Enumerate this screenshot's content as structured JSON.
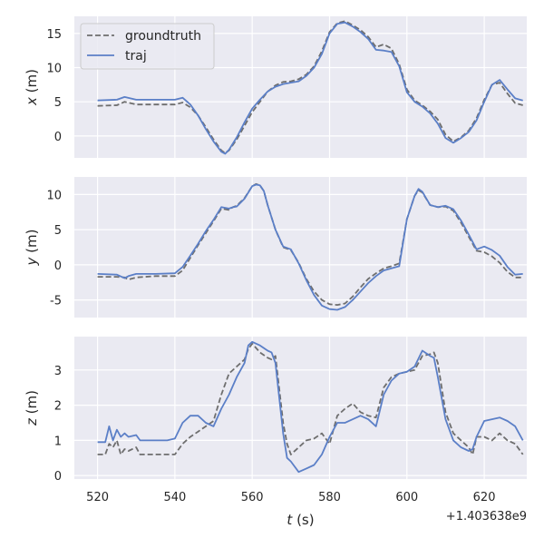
{
  "chart_data": [
    {
      "type": "line",
      "ylabel_var": "x",
      "ylabel_unit": " (m)",
      "xlim": [
        514,
        631
      ],
      "ylim": [
        -3.2,
        17.5
      ],
      "yticks": [
        0,
        5,
        10,
        15
      ],
      "xticks": [
        520,
        540,
        560,
        580,
        600,
        620
      ],
      "legend": {
        "position": "top-left",
        "entries": [
          "groundtruth",
          "traj"
        ]
      },
      "series": [
        {
          "name": "groundtruth",
          "style": "dashed",
          "color": "#6e6e6e",
          "x": [
            520,
            525,
            527,
            530,
            535,
            540,
            542,
            544,
            546,
            548,
            550,
            552,
            553,
            554,
            556,
            558,
            560,
            562,
            564,
            566,
            568,
            570,
            572,
            574,
            576,
            578,
            580,
            582,
            584,
            586,
            588,
            590,
            592,
            594,
            596,
            598,
            600,
            602,
            604,
            606,
            608,
            610,
            612,
            614,
            616,
            618,
            620,
            622,
            624,
            626,
            628,
            630
          ],
          "y": [
            4.4,
            4.5,
            5.0,
            4.6,
            4.6,
            4.6,
            4.9,
            4.2,
            3.0,
            1.3,
            -0.5,
            -2.1,
            -2.5,
            -2.1,
            -0.5,
            1.5,
            3.5,
            5.0,
            6.5,
            7.4,
            7.9,
            8.0,
            8.3,
            9.0,
            10.2,
            12.4,
            15.2,
            16.5,
            16.8,
            16.2,
            15.5,
            14.5,
            13.0,
            13.4,
            12.8,
            10.5,
            6.8,
            5.2,
            4.5,
            3.6,
            2.4,
            0.2,
            -0.8,
            -0.2,
            0.8,
            2.6,
            5.3,
            7.5,
            7.8,
            6.2,
            4.8,
            4.5
          ]
        },
        {
          "name": "traj",
          "style": "solid",
          "color": "#5b7fc7",
          "x": [
            520,
            525,
            527,
            530,
            535,
            540,
            542,
            544,
            546,
            548,
            550,
            552,
            553,
            554,
            556,
            558,
            560,
            562,
            564,
            566,
            568,
            570,
            572,
            574,
            576,
            578,
            580,
            582,
            584,
            586,
            588,
            590,
            592,
            594,
            596,
            598,
            600,
            602,
            604,
            606,
            608,
            610,
            612,
            614,
            616,
            618,
            620,
            622,
            624,
            626,
            628,
            630
          ],
          "y": [
            5.2,
            5.3,
            5.7,
            5.3,
            5.3,
            5.3,
            5.6,
            4.6,
            3.0,
            1.0,
            -0.8,
            -2.3,
            -2.6,
            -2.0,
            -0.2,
            2.0,
            4.0,
            5.3,
            6.5,
            7.2,
            7.6,
            7.8,
            8.0,
            8.8,
            10.0,
            12.0,
            15.0,
            16.4,
            16.6,
            16.0,
            15.2,
            14.2,
            12.6,
            12.5,
            12.3,
            10.2,
            6.4,
            5.0,
            4.3,
            3.3,
            1.8,
            -0.3,
            -1.0,
            -0.3,
            0.6,
            2.3,
            5.0,
            7.5,
            8.2,
            6.8,
            5.5,
            5.2
          ]
        }
      ]
    },
    {
      "type": "line",
      "ylabel_var": "y",
      "ylabel_unit": " (m)",
      "xlim": [
        514,
        631
      ],
      "ylim": [
        -7.5,
        12.5
      ],
      "yticks": [
        -5,
        0,
        5,
        10
      ],
      "xticks": [
        520,
        540,
        560,
        580,
        600,
        620
      ],
      "series": [
        {
          "name": "groundtruth",
          "style": "dashed",
          "color": "#6e6e6e",
          "x": [
            520,
            525,
            527,
            528,
            530,
            535,
            540,
            542,
            544,
            546,
            548,
            550,
            552,
            554,
            555,
            556,
            558,
            560,
            561,
            562,
            563,
            564,
            566,
            568,
            570,
            572,
            574,
            576,
            578,
            580,
            582,
            584,
            586,
            588,
            590,
            592,
            594,
            596,
            598,
            600,
            602,
            603,
            604,
            606,
            608,
            610,
            612,
            614,
            616,
            618,
            620,
            622,
            624,
            626,
            628,
            630
          ],
          "y": [
            -1.7,
            -1.7,
            -1.8,
            -2.1,
            -1.8,
            -1.6,
            -1.6,
            -0.8,
            1.0,
            2.8,
            4.5,
            6.2,
            8.0,
            7.8,
            8.2,
            8.4,
            9.5,
            11.2,
            11.5,
            11.3,
            10.5,
            8.5,
            5.0,
            2.5,
            2.1,
            0.3,
            -2.0,
            -3.8,
            -5.0,
            -5.6,
            -5.7,
            -5.5,
            -4.5,
            -3.2,
            -2.0,
            -1.2,
            -0.5,
            -0.2,
            0.2,
            6.5,
            9.8,
            10.6,
            10.3,
            8.5,
            8.2,
            8.3,
            7.7,
            6.0,
            4.0,
            2.0,
            1.8,
            1.2,
            0.3,
            -1.0,
            -1.8,
            -1.8
          ]
        },
        {
          "name": "traj",
          "style": "solid",
          "color": "#5b7fc7",
          "x": [
            520,
            525,
            527,
            528,
            530,
            535,
            540,
            542,
            544,
            546,
            548,
            550,
            552,
            554,
            555,
            556,
            558,
            560,
            561,
            562,
            563,
            564,
            566,
            568,
            570,
            572,
            574,
            576,
            578,
            580,
            582,
            584,
            586,
            588,
            590,
            592,
            594,
            596,
            598,
            600,
            602,
            603,
            604,
            606,
            608,
            610,
            612,
            614,
            616,
            618,
            620,
            622,
            624,
            626,
            628,
            630
          ],
          "y": [
            -1.3,
            -1.4,
            -1.9,
            -1.6,
            -1.3,
            -1.3,
            -1.2,
            -0.3,
            1.3,
            3.0,
            4.8,
            6.4,
            8.2,
            8.0,
            8.2,
            8.3,
            9.4,
            11.2,
            11.4,
            11.3,
            10.5,
            8.5,
            5.0,
            2.6,
            2.2,
            0.2,
            -2.2,
            -4.3,
            -5.8,
            -6.3,
            -6.4,
            -6.0,
            -5.0,
            -3.8,
            -2.6,
            -1.6,
            -0.8,
            -0.5,
            -0.2,
            6.5,
            9.8,
            10.8,
            10.4,
            8.5,
            8.2,
            8.4,
            7.9,
            6.3,
            4.3,
            2.2,
            2.6,
            2.1,
            1.3,
            -0.3,
            -1.4,
            -1.3
          ]
        }
      ]
    },
    {
      "type": "line",
      "ylabel_var": "z",
      "ylabel_unit": " (m)",
      "xlim": [
        514,
        631
      ],
      "ylim": [
        -0.1,
        3.95
      ],
      "yticks": [
        0,
        1,
        2,
        3
      ],
      "xticks": [
        520,
        540,
        560,
        580,
        600,
        620
      ],
      "xlabel_var": "t",
      "xlabel_unit": " (s)",
      "offset_text": "+1.403638e9",
      "series": [
        {
          "name": "groundtruth",
          "style": "dashed",
          "color": "#6e6e6e",
          "x": [
            520,
            522,
            523,
            524,
            525,
            526,
            527,
            528,
            530,
            531,
            532,
            535,
            538,
            540,
            542,
            544,
            546,
            548,
            550,
            552,
            554,
            556,
            558,
            559,
            560,
            562,
            564,
            565,
            566,
            568,
            569,
            570,
            572,
            574,
            576,
            578,
            580,
            582,
            584,
            586,
            588,
            590,
            592,
            594,
            596,
            598,
            600,
            602,
            604,
            606,
            607,
            608,
            610,
            612,
            614,
            616,
            617,
            618,
            620,
            622,
            624,
            626,
            628,
            630
          ],
          "y": [
            0.6,
            0.6,
            0.9,
            0.8,
            1.0,
            0.6,
            0.75,
            0.7,
            0.8,
            0.6,
            0.6,
            0.6,
            0.6,
            0.6,
            0.9,
            1.1,
            1.25,
            1.4,
            1.55,
            2.3,
            2.9,
            3.1,
            3.3,
            3.6,
            3.75,
            3.5,
            3.35,
            3.3,
            3.4,
            1.5,
            0.9,
            0.6,
            0.8,
            1.0,
            1.05,
            1.2,
            0.9,
            1.7,
            1.9,
            2.05,
            1.8,
            1.7,
            1.65,
            2.5,
            2.8,
            2.9,
            2.95,
            3.0,
            3.4,
            3.45,
            3.5,
            3.2,
            1.8,
            1.2,
            1.0,
            0.8,
            0.6,
            1.1,
            1.1,
            1.0,
            1.2,
            1.0,
            0.9,
            0.6
          ]
        },
        {
          "name": "traj",
          "style": "solid",
          "color": "#5b7fc7",
          "x": [
            520,
            522,
            523,
            524,
            525,
            526,
            527,
            528,
            530,
            531,
            532,
            535,
            538,
            540,
            542,
            544,
            546,
            548,
            550,
            552,
            554,
            556,
            558,
            559,
            560,
            562,
            564,
            565,
            566,
            568,
            569,
            570,
            572,
            574,
            576,
            578,
            580,
            582,
            584,
            586,
            588,
            590,
            592,
            594,
            596,
            598,
            600,
            602,
            604,
            606,
            607,
            608,
            610,
            612,
            614,
            616,
            617,
            618,
            620,
            622,
            624,
            626,
            628,
            630
          ],
          "y": [
            0.95,
            0.95,
            1.4,
            1.0,
            1.3,
            1.1,
            1.2,
            1.1,
            1.15,
            1.0,
            1.0,
            1.0,
            1.0,
            1.05,
            1.5,
            1.7,
            1.7,
            1.5,
            1.4,
            1.9,
            2.3,
            2.8,
            3.2,
            3.7,
            3.8,
            3.7,
            3.55,
            3.5,
            3.2,
            1.2,
            0.5,
            0.4,
            0.1,
            0.2,
            0.3,
            0.6,
            1.1,
            1.5,
            1.5,
            1.6,
            1.7,
            1.6,
            1.4,
            2.3,
            2.7,
            2.9,
            2.95,
            3.1,
            3.55,
            3.4,
            3.35,
            2.8,
            1.6,
            1.0,
            0.8,
            0.7,
            0.75,
            1.1,
            1.55,
            1.6,
            1.65,
            1.55,
            1.4,
            1.0
          ]
        }
      ]
    }
  ]
}
